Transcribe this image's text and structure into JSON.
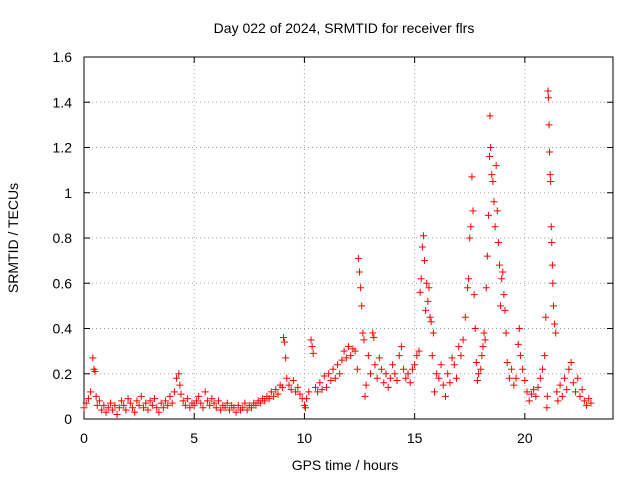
{
  "chart_data": {
    "type": "scatter",
    "title": "Day 022 of 2024, SRMTID for receiver flrs",
    "xlabel": "GPS time / hours",
    "ylabel": "SRMTID / TECUs",
    "xlim": [
      0,
      24
    ],
    "ylim": [
      0,
      1.6
    ],
    "xticks": [
      0,
      5,
      10,
      15,
      20
    ],
    "yticks": [
      0,
      0.2,
      0.4,
      0.6,
      0.8,
      1,
      1.2,
      1.4,
      1.6
    ],
    "xtick_labels": [
      "0",
      "5",
      "10",
      "15",
      "20"
    ],
    "ytick_labels": [
      "0",
      "0.2",
      "0.4",
      "0.6",
      "0.8",
      "1",
      "1.2",
      "1.4",
      "1.6"
    ],
    "grid": true,
    "legend": "none",
    "series": [
      {
        "name": "SRMTID",
        "color": "#ff0000",
        "marker": "plus",
        "points": [
          [
            0.0,
            0.05
          ],
          [
            0.1,
            0.07
          ],
          [
            0.2,
            0.09
          ],
          [
            0.3,
            0.12
          ],
          [
            0.4,
            0.27
          ],
          [
            0.45,
            0.22
          ],
          [
            0.5,
            0.21
          ],
          [
            0.55,
            0.1
          ],
          [
            0.6,
            0.06
          ],
          [
            0.7,
            0.08
          ],
          [
            0.8,
            0.04
          ],
          [
            0.9,
            0.06
          ],
          [
            1.0,
            0.03
          ],
          [
            1.1,
            0.05
          ],
          [
            1.2,
            0.07
          ],
          [
            1.3,
            0.04
          ],
          [
            1.4,
            0.06
          ],
          [
            1.5,
            0.02
          ],
          [
            1.6,
            0.05
          ],
          [
            1.7,
            0.08
          ],
          [
            1.8,
            0.06
          ],
          [
            1.9,
            0.04
          ],
          [
            2.0,
            0.09
          ],
          [
            2.1,
            0.07
          ],
          [
            2.2,
            0.05
          ],
          [
            2.3,
            0.03
          ],
          [
            2.4,
            0.08
          ],
          [
            2.5,
            0.06
          ],
          [
            2.6,
            0.1
          ],
          [
            2.7,
            0.05
          ],
          [
            2.8,
            0.07
          ],
          [
            2.9,
            0.04
          ],
          [
            3.0,
            0.08
          ],
          [
            3.1,
            0.06
          ],
          [
            3.2,
            0.09
          ],
          [
            3.3,
            0.05
          ],
          [
            3.4,
            0.03
          ],
          [
            3.5,
            0.07
          ],
          [
            3.6,
            0.05
          ],
          [
            3.7,
            0.08
          ],
          [
            3.8,
            0.06
          ],
          [
            3.9,
            0.1
          ],
          [
            4.0,
            0.07
          ],
          [
            4.1,
            0.12
          ],
          [
            4.2,
            0.18
          ],
          [
            4.3,
            0.2
          ],
          [
            4.35,
            0.15
          ],
          [
            4.4,
            0.11
          ],
          [
            4.5,
            0.08
          ],
          [
            4.6,
            0.06
          ],
          [
            4.7,
            0.09
          ],
          [
            4.8,
            0.05
          ],
          [
            4.9,
            0.07
          ],
          [
            5.0,
            0.06
          ],
          [
            5.1,
            0.08
          ],
          [
            5.2,
            0.1
          ],
          [
            5.3,
            0.07
          ],
          [
            5.4,
            0.05
          ],
          [
            5.5,
            0.12
          ],
          [
            5.6,
            0.08
          ],
          [
            5.7,
            0.06
          ],
          [
            5.8,
            0.09
          ],
          [
            5.9,
            0.07
          ],
          [
            6.0,
            0.05
          ],
          [
            6.1,
            0.08
          ],
          [
            6.2,
            0.04
          ],
          [
            6.3,
            0.06
          ],
          [
            6.4,
            0.05
          ],
          [
            6.5,
            0.07
          ],
          [
            6.6,
            0.04
          ],
          [
            6.7,
            0.06
          ],
          [
            6.8,
            0.05
          ],
          [
            6.9,
            0.03
          ],
          [
            7.0,
            0.06
          ],
          [
            7.1,
            0.04
          ],
          [
            7.2,
            0.05
          ],
          [
            7.3,
            0.07
          ],
          [
            7.4,
            0.04
          ],
          [
            7.5,
            0.06
          ],
          [
            7.6,
            0.05
          ],
          [
            7.7,
            0.07
          ],
          [
            7.8,
            0.06
          ],
          [
            7.9,
            0.08
          ],
          [
            8.0,
            0.07
          ],
          [
            8.1,
            0.09
          ],
          [
            8.2,
            0.08
          ],
          [
            8.3,
            0.1
          ],
          [
            8.4,
            0.09
          ],
          [
            8.5,
            0.12
          ],
          [
            8.6,
            0.1
          ],
          [
            8.7,
            0.13
          ],
          [
            8.8,
            0.11
          ],
          [
            8.9,
            0.15
          ],
          [
            9.0,
            0.14
          ],
          [
            9.05,
            0.36
          ],
          [
            9.1,
            0.34
          ],
          [
            9.15,
            0.27
          ],
          [
            9.2,
            0.18
          ],
          [
            9.3,
            0.15
          ],
          [
            9.4,
            0.13
          ],
          [
            9.5,
            0.17
          ],
          [
            9.6,
            0.12
          ],
          [
            9.7,
            0.14
          ],
          [
            9.8,
            0.11
          ],
          [
            9.9,
            0.09
          ],
          [
            10.0,
            0.06
          ],
          [
            10.05,
            0.05
          ],
          [
            10.1,
            0.09
          ],
          [
            10.2,
            0.12
          ],
          [
            10.3,
            0.35
          ],
          [
            10.35,
            0.32
          ],
          [
            10.4,
            0.29
          ],
          [
            10.5,
            0.14
          ],
          [
            10.6,
            0.12
          ],
          [
            10.7,
            0.16
          ],
          [
            10.8,
            0.13
          ],
          [
            10.9,
            0.19
          ],
          [
            11.0,
            0.14
          ],
          [
            11.1,
            0.2
          ],
          [
            11.2,
            0.17
          ],
          [
            11.3,
            0.22
          ],
          [
            11.4,
            0.18
          ],
          [
            11.5,
            0.24
          ],
          [
            11.6,
            0.2
          ],
          [
            11.7,
            0.26
          ],
          [
            11.8,
            0.3
          ],
          [
            11.9,
            0.27
          ],
          [
            12.0,
            0.32
          ],
          [
            12.1,
            0.28
          ],
          [
            12.2,
            0.31
          ],
          [
            12.3,
            0.3
          ],
          [
            12.4,
            0.22
          ],
          [
            12.45,
            0.71
          ],
          [
            12.5,
            0.65
          ],
          [
            12.55,
            0.58
          ],
          [
            12.6,
            0.5
          ],
          [
            12.65,
            0.38
          ],
          [
            12.7,
            0.35
          ],
          [
            12.75,
            0.1
          ],
          [
            12.8,
            0.15
          ],
          [
            12.9,
            0.28
          ],
          [
            13.0,
            0.2
          ],
          [
            13.1,
            0.38
          ],
          [
            13.15,
            0.36
          ],
          [
            13.2,
            0.24
          ],
          [
            13.3,
            0.18
          ],
          [
            13.4,
            0.27
          ],
          [
            13.5,
            0.22
          ],
          [
            13.6,
            0.16
          ],
          [
            13.7,
            0.2
          ],
          [
            13.8,
            0.14
          ],
          [
            13.9,
            0.18
          ],
          [
            14.0,
            0.24
          ],
          [
            14.1,
            0.2
          ],
          [
            14.2,
            0.17
          ],
          [
            14.3,
            0.28
          ],
          [
            14.4,
            0.32
          ],
          [
            14.5,
            0.22
          ],
          [
            14.6,
            0.18
          ],
          [
            14.7,
            0.2
          ],
          [
            14.8,
            0.16
          ],
          [
            14.9,
            0.22
          ],
          [
            15.0,
            0.24
          ],
          [
            15.1,
            0.28
          ],
          [
            15.2,
            0.3
          ],
          [
            15.25,
            0.56
          ],
          [
            15.3,
            0.62
          ],
          [
            15.35,
            0.76
          ],
          [
            15.4,
            0.81
          ],
          [
            15.45,
            0.7
          ],
          [
            15.5,
            0.48
          ],
          [
            15.55,
            0.6
          ],
          [
            15.6,
            0.52
          ],
          [
            15.65,
            0.58
          ],
          [
            15.7,
            0.45
          ],
          [
            15.75,
            0.43
          ],
          [
            15.8,
            0.28
          ],
          [
            15.85,
            0.38
          ],
          [
            15.9,
            0.12
          ],
          [
            16.0,
            0.2
          ],
          [
            16.1,
            0.18
          ],
          [
            16.2,
            0.24
          ],
          [
            16.3,
            0.15
          ],
          [
            16.4,
            0.1
          ],
          [
            16.5,
            0.2
          ],
          [
            16.6,
            0.16
          ],
          [
            16.7,
            0.27
          ],
          [
            16.8,
            0.24
          ],
          [
            16.9,
            0.18
          ],
          [
            17.0,
            0.32
          ],
          [
            17.1,
            0.28
          ],
          [
            17.2,
            0.35
          ],
          [
            17.3,
            0.45
          ],
          [
            17.4,
            0.58
          ],
          [
            17.45,
            0.62
          ],
          [
            17.5,
            0.8
          ],
          [
            17.55,
            0.85
          ],
          [
            17.6,
            1.07
          ],
          [
            17.65,
            0.92
          ],
          [
            17.7,
            0.55
          ],
          [
            17.75,
            0.4
          ],
          [
            17.8,
            0.25
          ],
          [
            17.85,
            0.17
          ],
          [
            17.9,
            0.2
          ],
          [
            18.0,
            0.22
          ],
          [
            18.05,
            0.28
          ],
          [
            18.1,
            0.32
          ],
          [
            18.15,
            0.38
          ],
          [
            18.2,
            0.35
          ],
          [
            18.25,
            0.58
          ],
          [
            18.3,
            0.72
          ],
          [
            18.35,
            0.9
          ],
          [
            18.4,
            1.16
          ],
          [
            18.42,
            1.34
          ],
          [
            18.45,
            1.2
          ],
          [
            18.5,
            1.08
          ],
          [
            18.55,
            1.05
          ],
          [
            18.6,
            0.96
          ],
          [
            18.65,
            0.85
          ],
          [
            18.7,
            1.12
          ],
          [
            18.75,
            0.92
          ],
          [
            18.8,
            0.78
          ],
          [
            18.85,
            0.68
          ],
          [
            18.9,
            0.5
          ],
          [
            18.95,
            0.62
          ],
          [
            19.0,
            0.65
          ],
          [
            19.05,
            0.55
          ],
          [
            19.1,
            0.48
          ],
          [
            19.15,
            0.38
          ],
          [
            19.2,
            0.25
          ],
          [
            19.3,
            0.18
          ],
          [
            19.4,
            0.22
          ],
          [
            19.5,
            0.15
          ],
          [
            19.6,
            0.18
          ],
          [
            19.7,
            0.33
          ],
          [
            19.75,
            0.4
          ],
          [
            19.8,
            0.28
          ],
          [
            19.9,
            0.22
          ],
          [
            20.0,
            0.17
          ],
          [
            20.1,
            0.12
          ],
          [
            20.2,
            0.08
          ],
          [
            20.3,
            0.11
          ],
          [
            20.4,
            0.13
          ],
          [
            20.5,
            0.1
          ],
          [
            20.6,
            0.14
          ],
          [
            20.7,
            0.18
          ],
          [
            20.8,
            0.22
          ],
          [
            20.9,
            0.28
          ],
          [
            20.95,
            0.45
          ],
          [
            21.0,
            0.05
          ],
          [
            21.02,
            0.1
          ],
          [
            21.05,
            1.45
          ],
          [
            21.07,
            1.42
          ],
          [
            21.1,
            1.3
          ],
          [
            21.12,
            1.18
          ],
          [
            21.15,
            1.08
          ],
          [
            21.17,
            1.05
          ],
          [
            21.2,
            0.85
          ],
          [
            21.22,
            0.78
          ],
          [
            21.25,
            0.68
          ],
          [
            21.27,
            0.6
          ],
          [
            21.3,
            0.5
          ],
          [
            21.35,
            0.42
          ],
          [
            21.4,
            0.38
          ],
          [
            21.45,
            0.12
          ],
          [
            21.5,
            0.08
          ],
          [
            21.6,
            0.15
          ],
          [
            21.7,
            0.1
          ],
          [
            21.8,
            0.18
          ],
          [
            21.9,
            0.13
          ],
          [
            22.0,
            0.22
          ],
          [
            22.1,
            0.25
          ],
          [
            22.2,
            0.16
          ],
          [
            22.3,
            0.12
          ],
          [
            22.4,
            0.18
          ],
          [
            22.5,
            0.1
          ],
          [
            22.6,
            0.13
          ],
          [
            22.7,
            0.08
          ],
          [
            22.8,
            0.06
          ],
          [
            22.9,
            0.09
          ],
          [
            23.0,
            0.07
          ]
        ]
      }
    ]
  }
}
